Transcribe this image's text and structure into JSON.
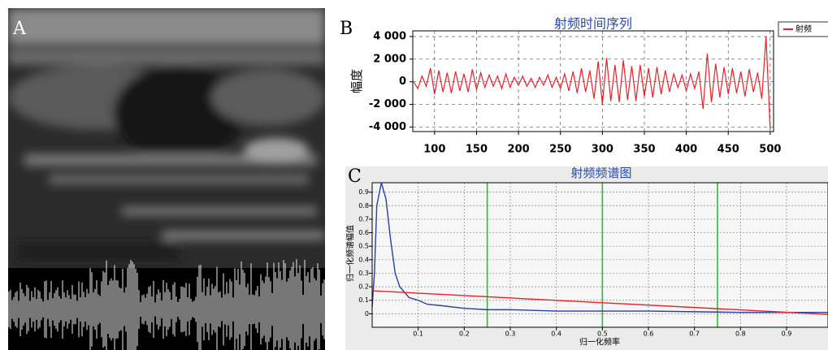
{
  "panel_labels": [
    "A",
    "B",
    "C"
  ],
  "chart_data": [
    {
      "type": "line",
      "title": "射频时间序列",
      "y_label": "幅度",
      "legend": "right-top",
      "grid": true,
      "x": [
        75,
        80,
        85,
        90,
        95,
        100,
        105,
        110,
        115,
        120,
        125,
        130,
        135,
        140,
        145,
        150,
        155,
        160,
        165,
        170,
        175,
        180,
        185,
        190,
        195,
        200,
        205,
        210,
        215,
        220,
        225,
        230,
        235,
        240,
        245,
        250,
        255,
        260,
        265,
        270,
        275,
        280,
        285,
        290,
        295,
        300,
        305,
        310,
        315,
        320,
        325,
        330,
        335,
        340,
        345,
        350,
        355,
        360,
        365,
        370,
        375,
        380,
        385,
        390,
        395,
        400,
        405,
        410,
        415,
        420,
        425,
        430,
        435,
        440,
        445,
        450,
        455,
        460,
        465,
        470,
        475,
        480,
        485,
        490,
        495,
        500
      ],
      "series": [
        {
          "name": "射频",
          "color": "#e8202a",
          "values": [
            0,
            -600,
            500,
            -400,
            1200,
            -1100,
            1000,
            -900,
            800,
            -1000,
            900,
            -800,
            700,
            -900,
            1100,
            -700,
            800,
            -500,
            600,
            -400,
            500,
            -600,
            700,
            -500,
            400,
            -300,
            500,
            -400,
            300,
            -500,
            400,
            -300,
            600,
            -500,
            400,
            -600,
            700,
            -800,
            900,
            -1000,
            1200,
            -900,
            1000,
            -1500,
            1800,
            -2000,
            2100,
            -1700,
            1500,
            -1800,
            1900,
            -1600,
            1400,
            -1700,
            1500,
            -1300,
            1200,
            -1400,
            1300,
            -1100,
            1000,
            -900,
            700,
            -500,
            600,
            -800,
            700,
            -600,
            900,
            -2400,
            2500,
            -1800,
            1600,
            -1400,
            1300,
            -1100,
            1200,
            -1000,
            900,
            -1300,
            1100,
            -900,
            800,
            -1500,
            4000,
            -4200
          ]
        }
      ],
      "xlim": [
        74,
        504
      ],
      "xticks": [
        100,
        150,
        200,
        250,
        300,
        350,
        400,
        450,
        500
      ],
      "ylim": [
        -4400,
        4500
      ],
      "yticks": [
        {
          "value": -4000,
          "label": "-4 000"
        },
        {
          "value": -2000,
          "label": "-2 000"
        },
        0,
        {
          "value": 2000,
          "label": "2 000"
        },
        {
          "value": 4000,
          "label": "4 000"
        }
      ]
    },
    {
      "type": "line",
      "title": "射频频谱图",
      "x_label": "归一化频率",
      "y_label": "归一化频谱幅值",
      "grid": true,
      "series": [
        {
          "color": "#2a3f9e",
          "x": [
            0,
            0.005,
            0.01,
            0.02,
            0.03,
            0.04,
            0.05,
            0.06,
            0.08,
            0.1,
            0.12,
            0.15,
            0.2,
            0.25,
            0.3,
            0.35,
            0.4,
            0.5,
            0.6,
            0.7,
            0.8,
            0.9,
            0.99
          ],
          "values": [
            0.05,
            0.3,
            0.8,
            0.97,
            0.85,
            0.55,
            0.3,
            0.2,
            0.12,
            0.1,
            0.07,
            0.06,
            0.04,
            0.03,
            0.03,
            0.025,
            0.02,
            0.02,
            0.02,
            0.015,
            0.01,
            0.01,
            0.01
          ]
        },
        {
          "color": "#e8202a",
          "x": [
            0,
            0.99
          ],
          "values": [
            0.17,
            -0.005
          ]
        }
      ],
      "vlines": {
        "color": "#33bb33",
        "values": [
          0.25,
          0.5,
          0.75
        ]
      },
      "xlim": [
        0,
        0.99
      ],
      "xticks": [
        0.1,
        0.2,
        0.3,
        0.4,
        0.5,
        0.6,
        0.7,
        0.8,
        0.9
      ],
      "ylim": [
        -0.1,
        0.97
      ],
      "yticks": [
        0,
        0.1,
        0.2,
        0.3,
        0.4,
        0.5,
        0.6,
        0.7,
        0.8,
        0.9
      ]
    }
  ]
}
